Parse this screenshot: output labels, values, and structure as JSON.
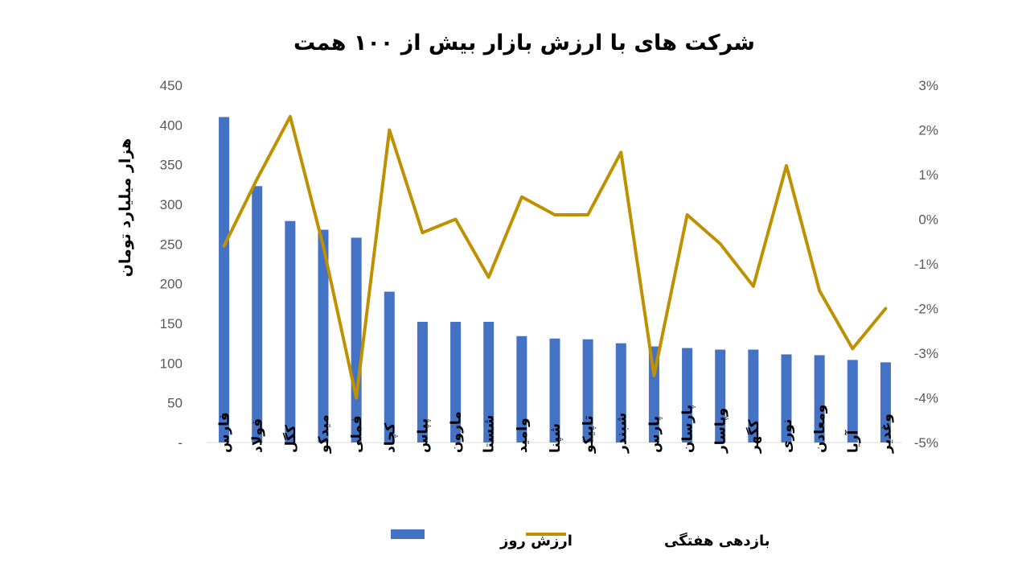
{
  "chart_data": {
    "type": "bar",
    "title": "شرکت های با ارزش بازار بیش از ۱۰۰ همت",
    "ylabel": "هزار میلیارد تومان",
    "ylim": [
      0,
      450
    ],
    "y2lim": [
      -5,
      3
    ],
    "y_ticks": [
      "-",
      "50",
      "100",
      "150",
      "200",
      "250",
      "300",
      "350",
      "400",
      "450"
    ],
    "y2_ticks": [
      "-5%",
      "-4%",
      "-3%",
      "-2%",
      "-1%",
      "0%",
      "1%",
      "2%",
      "3%"
    ],
    "categories": [
      "فارس",
      "فولاد",
      "کگل",
      "میدکو",
      "فملی",
      "کچاد",
      "پپاس",
      "مارون",
      "شستا",
      "وامید",
      "شپنا",
      "تاپیکو",
      "شبندر",
      "پارس",
      "پارسان",
      "وپاسار",
      "کگهر",
      "نوری",
      "ومعادن",
      "آریا",
      "وغدیر"
    ],
    "series": [
      {
        "name": "ارزش روز",
        "kind": "bar",
        "axis": "left",
        "color": "#4472C4",
        "values": [
          410,
          323,
          279,
          268,
          258,
          190,
          152,
          152,
          152,
          134,
          131,
          130,
          125,
          121,
          119,
          117,
          117,
          111,
          110,
          104,
          101
        ]
      },
      {
        "name": "بازدهی هفتگی",
        "kind": "line",
        "axis": "right",
        "color": "#BF9000",
        "values": [
          -0.6,
          0.9,
          2.3,
          -0.6,
          -4.0,
          2.0,
          -0.3,
          0.0,
          -1.3,
          0.5,
          0.1,
          0.1,
          1.5,
          -3.5,
          0.1,
          -0.55,
          -1.5,
          1.2,
          -1.6,
          -2.9,
          -2.0
        ]
      }
    ],
    "legend": "bottom"
  }
}
